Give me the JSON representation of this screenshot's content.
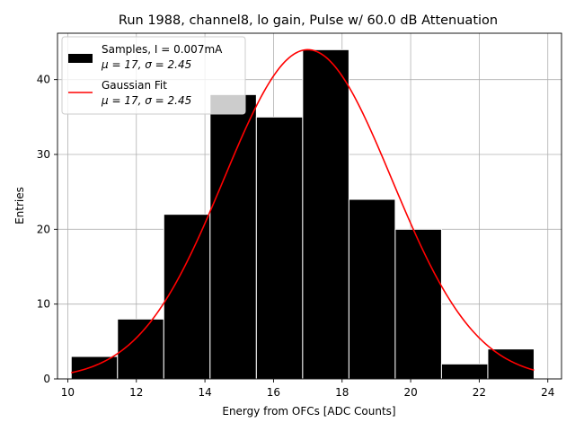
{
  "chart_data": {
    "type": "bar",
    "title": "Run 1988, channel8, lo gain, Pulse w/ 60.0 dB Attenuation",
    "xlabel": "Energy from OFCs [ADC Counts]",
    "ylabel": "Entries",
    "xlim": [
      9.7,
      24.4
    ],
    "ylim": [
      0,
      46.2
    ],
    "grid": true,
    "xticks": [
      10,
      12,
      14,
      16,
      18,
      20,
      22,
      24
    ],
    "yticks": [
      0,
      10,
      20,
      30,
      40
    ],
    "histogram": {
      "bin_edges": [
        10.1,
        11.45,
        12.8,
        14.15,
        15.5,
        16.85,
        18.2,
        19.55,
        20.9,
        22.25,
        23.6
      ],
      "counts": [
        3,
        8,
        22,
        38,
        35,
        44,
        24,
        20,
        2,
        4
      ],
      "color": "#000000",
      "edgecolor": "#ffffff"
    },
    "fit": {
      "type": "gaussian",
      "mu": 17,
      "sigma": 2.45,
      "amplitude": 44,
      "x_range": [
        10.1,
        23.6
      ],
      "color": "#ff0000"
    },
    "legend": {
      "location": "top-left",
      "entries": [
        {
          "label_line1": "Samples, I = 0.007mA",
          "label_line2": "μ = 17, σ = 2.45",
          "swatch": "patch",
          "color": "#000000"
        },
        {
          "label_line1": "Gaussian Fit",
          "label_line2": "μ = 17, σ = 2.45",
          "swatch": "line",
          "color": "#ff0000"
        }
      ]
    }
  }
}
